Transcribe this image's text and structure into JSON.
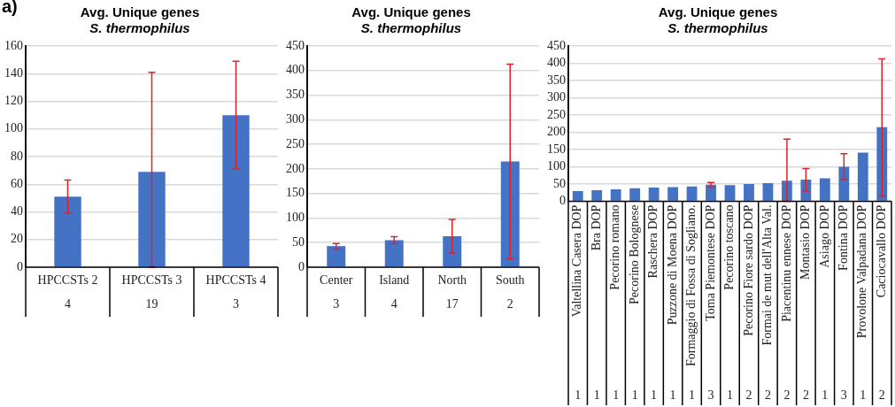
{
  "chart_data": [
    {
      "type": "bar",
      "title": "Avg. Unique genes",
      "subtitle": "S. thermophilus",
      "annotations": [
        "a)"
      ],
      "categories": [
        "HPCCSTs 2\n4",
        "HPCCSTs 3\n19",
        "HPCCSTs 4\n3"
      ],
      "values": [
        51,
        69,
        110
      ],
      "errors": [
        [
          39,
          63
        ],
        [
          0,
          141
        ],
        [
          71,
          149
        ]
      ],
      "color": "#4472c4",
      "ylim": [
        0,
        160
      ],
      "yticks": [
        0,
        20,
        40,
        60,
        80,
        100,
        120,
        140,
        160
      ],
      "grid": "y",
      "legend": false
    },
    {
      "type": "bar",
      "title": "Avg. Unique genes",
      "subtitle": "S. thermophilus",
      "categories": [
        "Center\n3",
        "Island\n4",
        "North\n17",
        "South\n2"
      ],
      "values": [
        43,
        55,
        63,
        215
      ],
      "errors": [
        [
          37,
          48
        ],
        [
          48,
          62
        ],
        [
          29,
          97
        ],
        [
          17,
          413
        ]
      ],
      "color": "#4472c4",
      "ylim": [
        0,
        450
      ],
      "yticks": [
        0,
        50,
        100,
        150,
        200,
        250,
        300,
        350,
        400,
        450
      ],
      "grid": "y",
      "legend": false
    },
    {
      "type": "bar",
      "title": "Avg. Unique genes",
      "subtitle": "S. thermophilus",
      "categories": [
        "Valtellina Casera DOP\n1",
        "Bra DOP\n1",
        "Pecorino romano\n1",
        "Pecorino Bolognese\n1",
        "Raschera DOP\n1",
        "Puzzone di Moena DOP\n1",
        "Formaggio di Fossa di Sogliano.\n1",
        "Toma Piemontese DOP\n3",
        "Pecorino toscano\n1",
        "Pecorino Fiore sardo DOP\n2",
        "Formai de mut dell'Alta Val.\n2",
        "Piacentinu ennese DOP\n2",
        "Montasio DOP\n2",
        "Asiago DOP\n1",
        "Fontina DOP\n3",
        "Provolone Valpadana DOP\n1",
        "Caciocavallo DOP\n2"
      ],
      "values": [
        30,
        32,
        35,
        38,
        40,
        41,
        43,
        48,
        47,
        50,
        53,
        60,
        63,
        67,
        100,
        141,
        215
      ],
      "errors": [
        null,
        null,
        null,
        null,
        null,
        null,
        null,
        [
          41,
          55
        ],
        null,
        null,
        null,
        [
          0,
          180
        ],
        [
          30,
          95
        ],
        null,
        [
          63,
          138
        ],
        null,
        [
          15,
          413
        ]
      ],
      "color": "#4472c4",
      "ylim": [
        0,
        450
      ],
      "yticks": [
        0,
        50,
        100,
        150,
        200,
        250,
        300,
        350,
        400,
        450
      ],
      "grid": "y",
      "legend": false
    }
  ]
}
